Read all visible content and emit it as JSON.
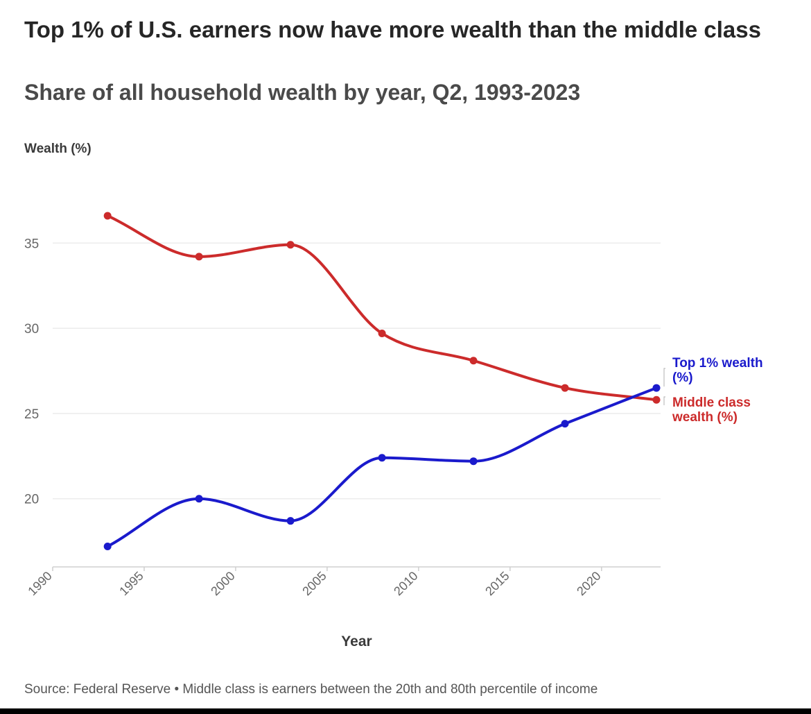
{
  "header": {
    "title": "Top 1% of U.S. earners now have more wealth than the middle class",
    "subtitle": "Share of all household wealth by year, Q2, 1993-2023"
  },
  "footer": {
    "source": "Source: Federal Reserve • Middle class is earners between the 20th and 80th percentile of income"
  },
  "chart_data": {
    "type": "line",
    "title": "Top 1% of U.S. earners now have more wealth than the middle class",
    "subtitle": "Share of all household wealth by year, Q2, 1993-2023",
    "xlabel": "Year",
    "ylabel": "Wealth (%)",
    "xlim": [
      1990,
      2023
    ],
    "ylim": [
      16,
      39
    ],
    "x_ticks": [
      1990,
      1995,
      2000,
      2005,
      2010,
      2015,
      2020
    ],
    "y_ticks": [
      20,
      25,
      30,
      35
    ],
    "grid": "horizontal",
    "legend": "direct labels at right end of lines",
    "x": [
      1993,
      1998,
      2003,
      2008,
      2013,
      2018,
      2023
    ],
    "series": [
      {
        "name": "Middle class wealth (%)",
        "label_lines": [
          "Middle class",
          "wealth (%)"
        ],
        "color": "#cc2b2b",
        "values": [
          36.6,
          34.2,
          34.9,
          29.7,
          28.1,
          26.5,
          25.8
        ]
      },
      {
        "name": "Top 1% wealth (%)",
        "label_lines": [
          "Top 1% wealth",
          "(%)"
        ],
        "color": "#1a1acc",
        "values": [
          17.2,
          20.0,
          18.7,
          22.4,
          22.2,
          24.4,
          26.5
        ]
      }
    ]
  }
}
